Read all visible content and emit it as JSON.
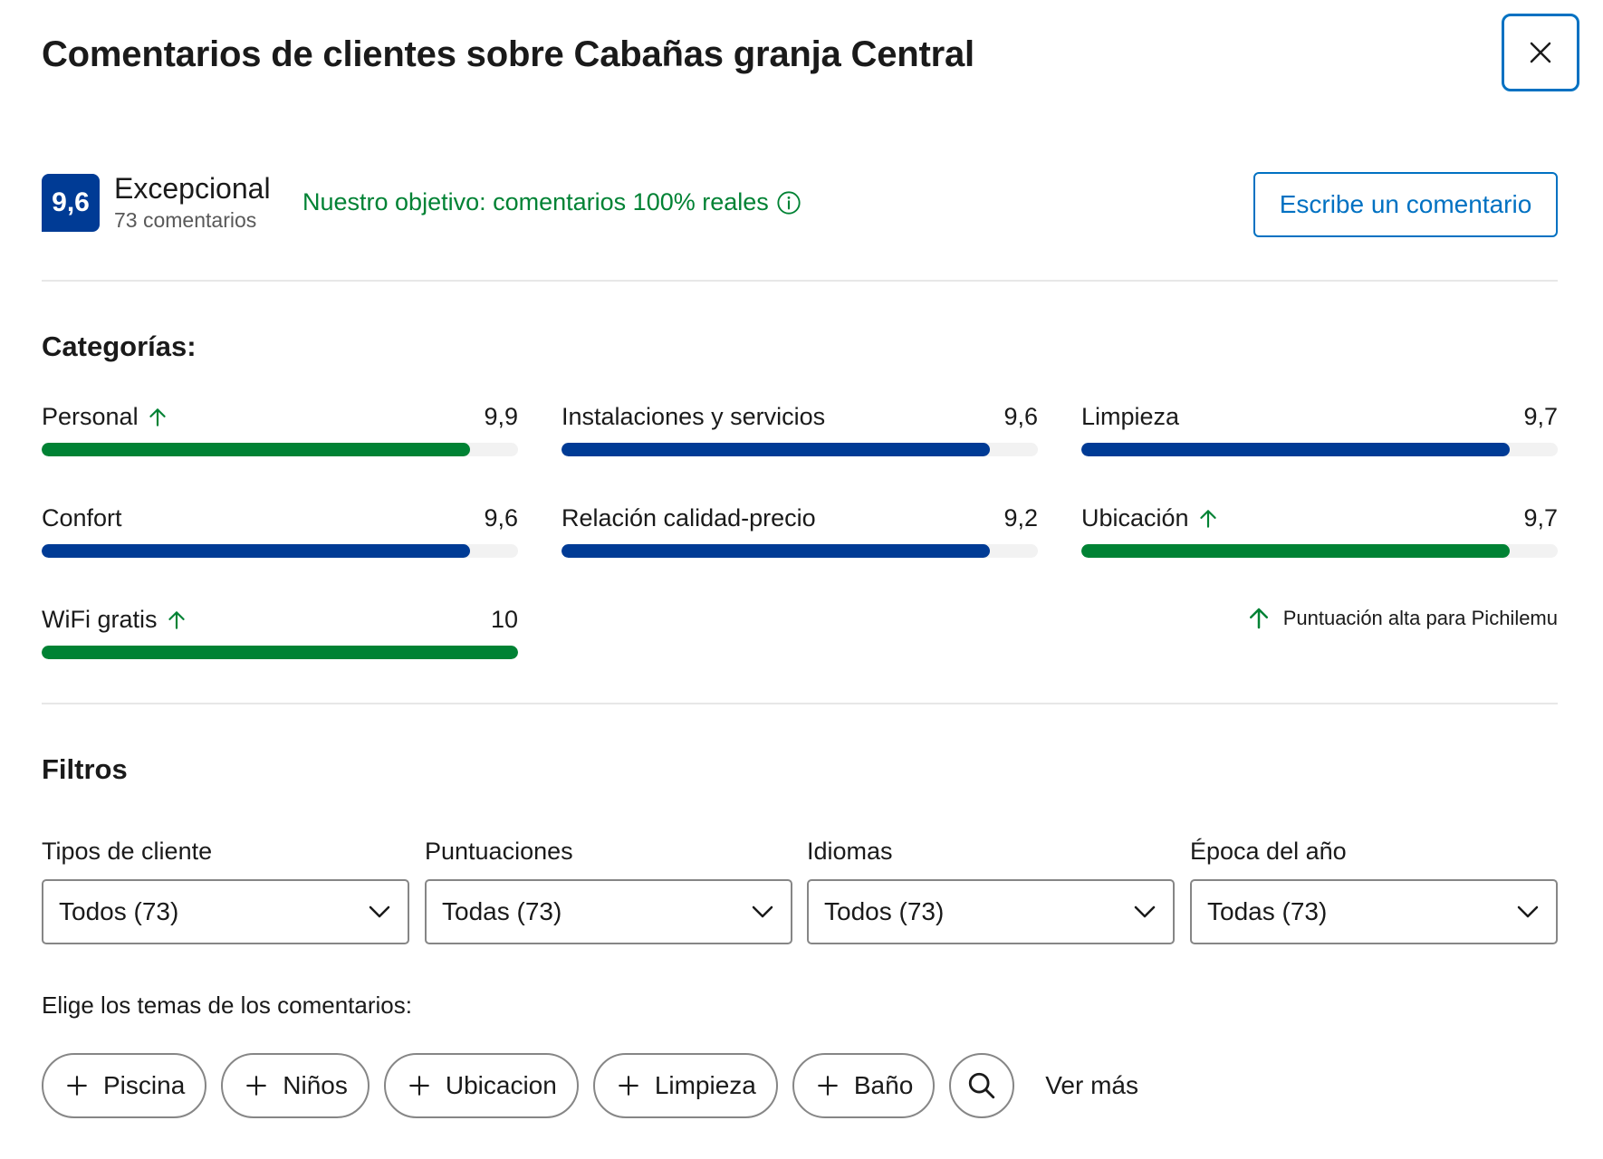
{
  "header": {
    "title": "Comentarios de clientes sobre Cabañas granja Central",
    "close_icon": "close-icon"
  },
  "summary": {
    "score": "9,6",
    "word": "Excepcional",
    "count": "73 comentarios",
    "objective": "Nuestro objetivo: comentarios 100% reales",
    "objective_icon": "info-icon",
    "write_button": "Escribe un comentario"
  },
  "categories": {
    "heading": "Categorías:",
    "items": [
      {
        "label": "Personal",
        "value": "9,9",
        "fill_fraction": 0.9,
        "high": true
      },
      {
        "label": "Instalaciones y servicios",
        "value": "9,6",
        "fill_fraction": 0.9,
        "high": false
      },
      {
        "label": "Limpieza",
        "value": "9,7",
        "fill_fraction": 0.9,
        "high": false
      },
      {
        "label": "Confort",
        "value": "9,6",
        "fill_fraction": 0.9,
        "high": false
      },
      {
        "label": "Relación calidad-precio",
        "value": "9,2",
        "fill_fraction": 0.9,
        "high": false
      },
      {
        "label": "Ubicación",
        "value": "9,7",
        "fill_fraction": 0.9,
        "high": true
      },
      {
        "label": "WiFi gratis",
        "value": "10",
        "fill_fraction": 1.0,
        "high": true
      }
    ],
    "legend": "Puntuación alta para Pichilemu",
    "colors": {
      "high": "#008234",
      "normal": "#003b95",
      "track": "#f2f2f2"
    }
  },
  "filters": {
    "heading": "Filtros",
    "selects": [
      {
        "label": "Tipos de cliente",
        "value": "Todos (73)"
      },
      {
        "label": "Puntuaciones",
        "value": "Todas (73)"
      },
      {
        "label": "Idiomas",
        "value": "Todos (73)"
      },
      {
        "label": "Época del año",
        "value": "Todas (73)"
      }
    ],
    "topics_label": "Elige los temas de los comentarios:",
    "topics": [
      "Piscina",
      "Niños",
      "Ubicacion",
      "Limpieza",
      "Baño"
    ],
    "see_more": "Ver más"
  }
}
